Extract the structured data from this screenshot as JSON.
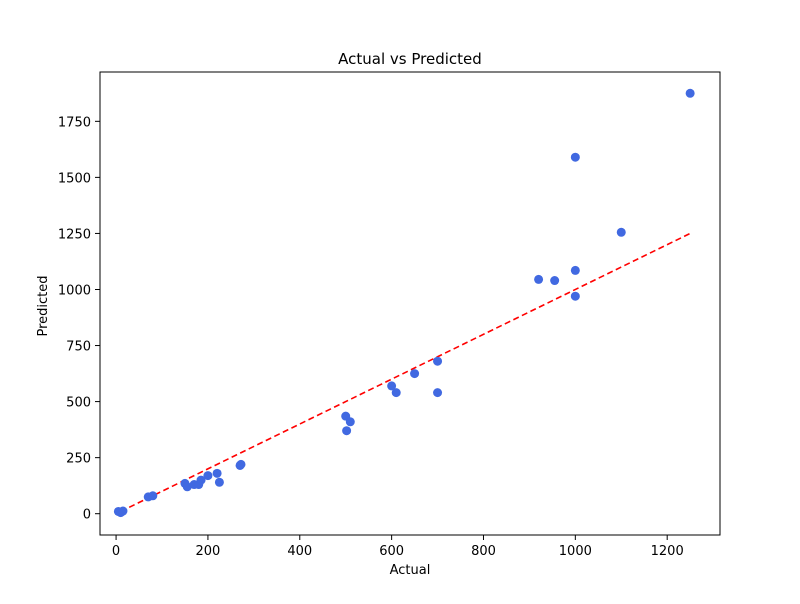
{
  "chart_data": {
    "type": "scatter",
    "title": "Actual vs Predicted",
    "xlabel": "Actual",
    "ylabel": "Predicted",
    "xlim": [
      -35,
      1315
    ],
    "ylim": [
      -95,
      1970
    ],
    "xticks": [
      0,
      200,
      400,
      600,
      800,
      1000,
      1200
    ],
    "yticks": [
      0,
      250,
      500,
      750,
      1000,
      1250,
      1500,
      1750
    ],
    "grid": false,
    "legend": "none",
    "colors": {
      "points": "#4169e1",
      "reference_line": "#ff0000"
    },
    "reference_line": {
      "style": "dashed",
      "x": [
        10,
        1250
      ],
      "y": [
        10,
        1250
      ]
    },
    "series": [
      {
        "x": [
          5,
          10,
          15,
          70,
          80,
          150,
          155,
          170,
          180,
          185,
          200,
          220,
          225,
          270,
          272,
          500,
          502,
          510,
          600,
          610,
          650,
          700,
          700,
          920,
          955,
          1000,
          1000,
          1000,
          1100,
          1250
        ],
        "y": [
          10,
          5,
          12,
          75,
          80,
          135,
          120,
          130,
          130,
          150,
          170,
          180,
          140,
          215,
          220,
          435,
          370,
          410,
          570,
          540,
          625,
          680,
          540,
          1045,
          1040,
          1590,
          1085,
          970,
          1255,
          1875
        ]
      }
    ]
  }
}
